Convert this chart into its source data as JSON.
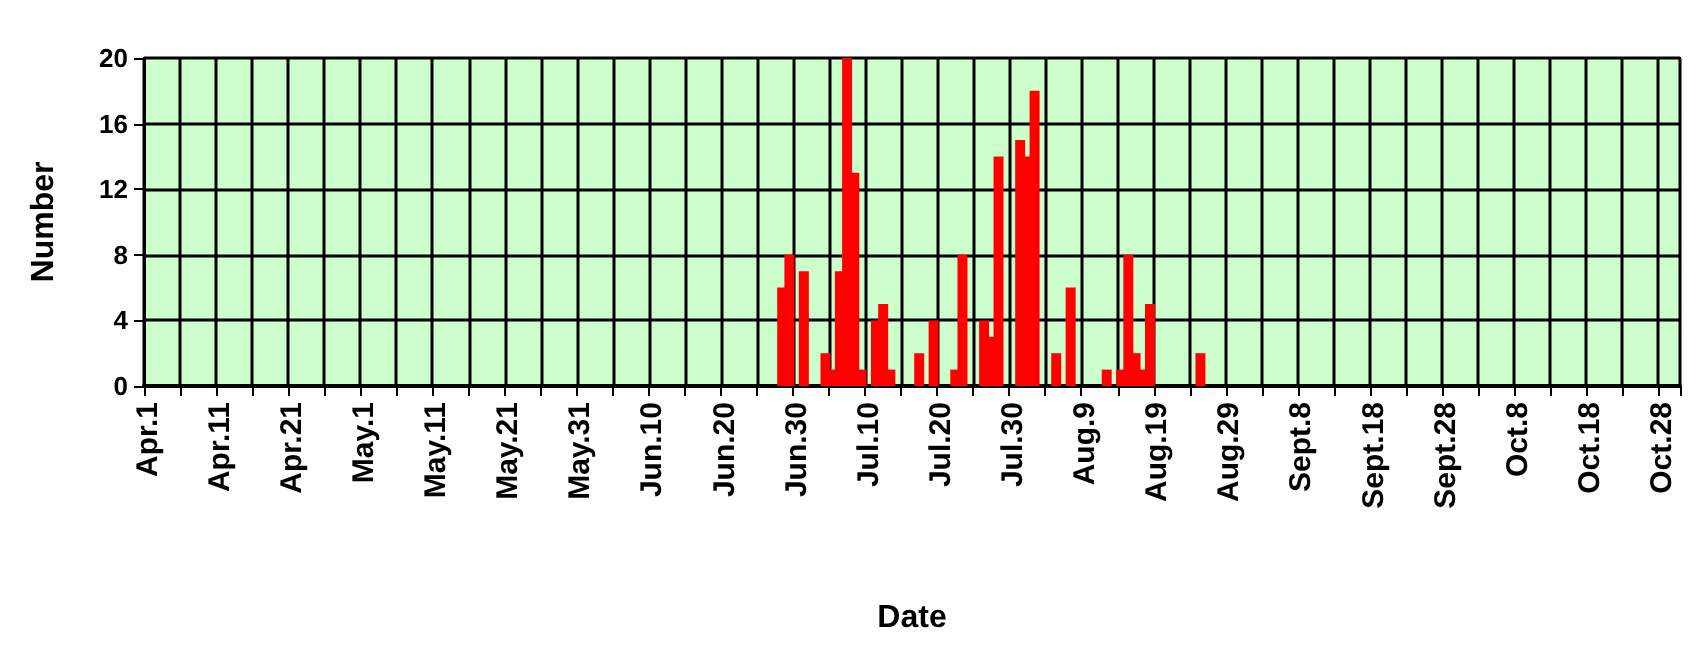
{
  "chart_data": {
    "type": "bar",
    "xlabel": "Date",
    "ylabel": "Number",
    "categories": [
      "Apr.1",
      null,
      null,
      null,
      null,
      null,
      null,
      null,
      null,
      null,
      "Apr.11",
      null,
      null,
      null,
      null,
      null,
      null,
      null,
      null,
      null,
      "Apr.21",
      null,
      null,
      null,
      null,
      null,
      null,
      null,
      null,
      null,
      "May.1",
      null,
      null,
      null,
      null,
      null,
      null,
      null,
      null,
      null,
      "May.11",
      null,
      null,
      null,
      null,
      null,
      null,
      null,
      null,
      null,
      "May.21",
      null,
      null,
      null,
      null,
      null,
      null,
      null,
      null,
      null,
      "May.31",
      null,
      null,
      null,
      null,
      null,
      null,
      null,
      null,
      null,
      "Jun.10",
      null,
      null,
      null,
      null,
      null,
      null,
      null,
      null,
      null,
      "Jun.20",
      null,
      null,
      null,
      null,
      null,
      null,
      null,
      null,
      null,
      "Jun.30",
      null,
      null,
      null,
      null,
      null,
      null,
      null,
      null,
      null,
      "Jul.10",
      null,
      null,
      null,
      null,
      null,
      null,
      null,
      null,
      null,
      "Jul.20",
      null,
      null,
      null,
      null,
      null,
      null,
      null,
      null,
      null,
      "Jul.30",
      null,
      null,
      null,
      null,
      null,
      null,
      null,
      null,
      null,
      "Aug.9",
      null,
      null,
      null,
      null,
      null,
      null,
      null,
      null,
      null,
      "Aug.19",
      null,
      null,
      null,
      null,
      null,
      null,
      null,
      null,
      null,
      "Aug.29",
      null,
      null,
      null,
      null,
      null,
      null,
      null,
      null,
      null,
      "Sept.8",
      null,
      null,
      null,
      null,
      null,
      null,
      null,
      null,
      null,
      "Sept.18",
      null,
      null,
      null,
      null,
      null,
      null,
      null,
      null,
      null,
      "Sept.28",
      null,
      null,
      null,
      null,
      null,
      null,
      null,
      null,
      null,
      "Oct.8",
      null,
      null,
      null,
      null,
      null,
      null,
      null,
      null,
      null,
      "Oct.18",
      null,
      null,
      null,
      null,
      null,
      null,
      null,
      null,
      null,
      "Oct.28",
      null,
      null
    ],
    "values": [
      null,
      null,
      null,
      null,
      null,
      null,
      null,
      null,
      null,
      null,
      null,
      null,
      null,
      null,
      null,
      null,
      null,
      null,
      null,
      null,
      null,
      null,
      null,
      null,
      null,
      null,
      null,
      null,
      null,
      null,
      null,
      null,
      null,
      null,
      null,
      null,
      null,
      null,
      null,
      null,
      null,
      null,
      null,
      null,
      null,
      null,
      null,
      null,
      null,
      null,
      null,
      null,
      null,
      null,
      null,
      null,
      null,
      null,
      null,
      null,
      null,
      null,
      null,
      null,
      null,
      null,
      null,
      null,
      null,
      null,
      null,
      null,
      null,
      null,
      null,
      null,
      null,
      null,
      null,
      null,
      null,
      null,
      null,
      null,
      null,
      null,
      null,
      null,
      6,
      8,
      null,
      7,
      null,
      null,
      2,
      1,
      7,
      20,
      13,
      1,
      null,
      4,
      5,
      1,
      null,
      null,
      null,
      2,
      null,
      4,
      null,
      null,
      1,
      8,
      null,
      null,
      4,
      3,
      14,
      null,
      null,
      15,
      14,
      18,
      null,
      null,
      2,
      null,
      6,
      null,
      null,
      null,
      null,
      1,
      null,
      1,
      8,
      2,
      1,
      5,
      null,
      null,
      null,
      null,
      null,
      null,
      2,
      null,
      null,
      null,
      null,
      null,
      null,
      null,
      null,
      null,
      null,
      null,
      null,
      null,
      null,
      null,
      null,
      null,
      null,
      null,
      null,
      null,
      null,
      null,
      null,
      null,
      null,
      null,
      null,
      null,
      null,
      null,
      null,
      null,
      null,
      null,
      null,
      null,
      null,
      null,
      null,
      null,
      null,
      null,
      null,
      null,
      null,
      null,
      null,
      null,
      null,
      null,
      null,
      null,
      null,
      null,
      null,
      null,
      null,
      null,
      null,
      null,
      null,
      null,
      null,
      null,
      null
    ],
    "color": "#ff0000",
    "ylim": [
      0,
      20
    ],
    "yticks": [
      0,
      4,
      8,
      12,
      16,
      20
    ],
    "grid": true
  }
}
